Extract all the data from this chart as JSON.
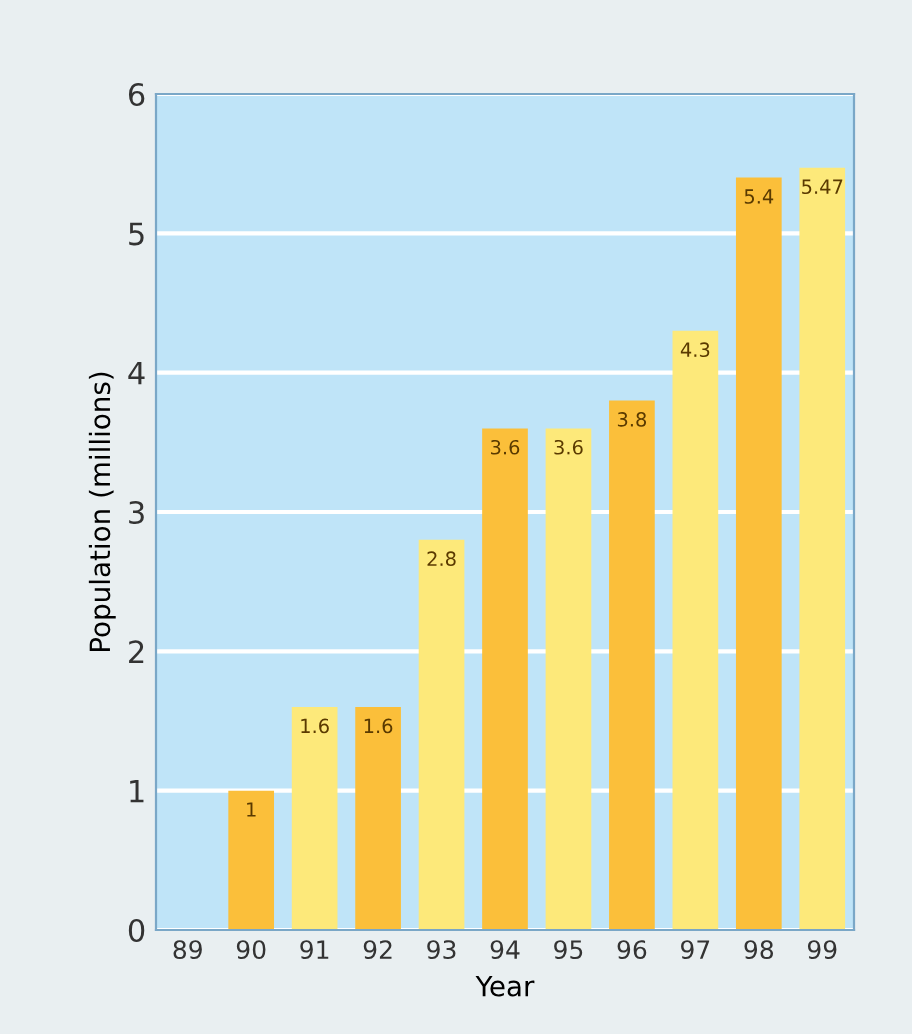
{
  "chart_data": {
    "type": "bar",
    "xlabel": "Year",
    "ylabel": "Population (millions)",
    "categories": [
      "89",
      "90",
      "91",
      "92",
      "93",
      "94",
      "95",
      "96",
      "97",
      "98",
      "99"
    ],
    "values": [
      null,
      1,
      1.6,
      1.6,
      2.8,
      3.6,
      3.6,
      3.8,
      4.3,
      5.4,
      5.47
    ],
    "colors": [
      "#fbbf3a",
      "#fbbf3a",
      "#fde97a",
      "#fbbf3a",
      "#fde97a",
      "#fbbf3a",
      "#fde97a",
      "#fbbf3a",
      "#fde97a",
      "#fbbf3a",
      "#fde97a"
    ],
    "ylim": [
      0,
      6
    ],
    "yticks": [
      0,
      1,
      2,
      3,
      4,
      5,
      6
    ],
    "grid": "y",
    "data_labels": true
  }
}
